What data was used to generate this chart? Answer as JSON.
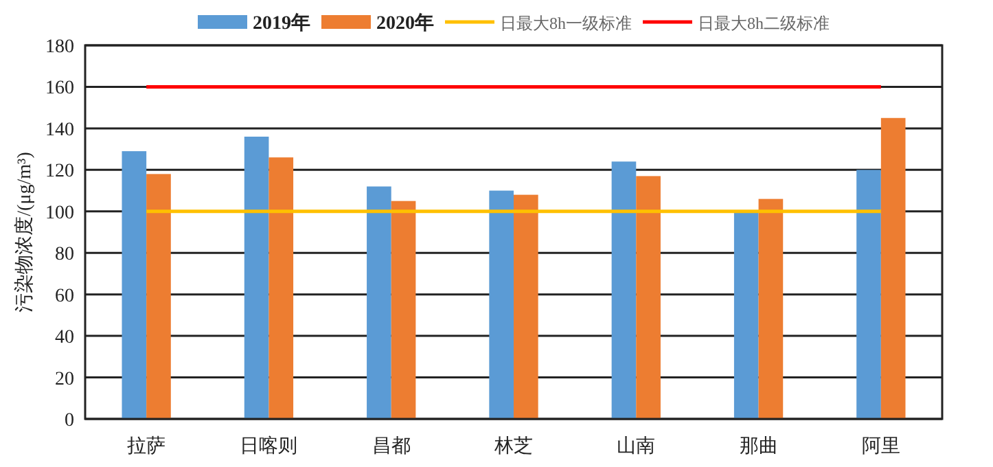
{
  "chart_data": {
    "type": "bar",
    "ylabel": "污染物浓度/(μg/m³)",
    "categories": [
      "拉萨",
      "日喀则",
      "昌都",
      "林芝",
      "山南",
      "那曲",
      "阿里"
    ],
    "series": [
      {
        "name": "2019年",
        "color": "#5b9bd5",
        "values": [
          129,
          136,
          112,
          110,
          124,
          100,
          120
        ]
      },
      {
        "name": "2020年",
        "color": "#ed7d31",
        "values": [
          118,
          126,
          105,
          108,
          117,
          106,
          145
        ]
      }
    ],
    "ref_lines": [
      {
        "axis": "y",
        "value": 100,
        "label": "日最大8h一级标准",
        "color": "#ffc000"
      },
      {
        "axis": "y",
        "value": 160,
        "label": "日最大8h二级标准",
        "color": "#ff0000"
      }
    ],
    "ylim": [
      0,
      180
    ],
    "yticks": [
      0,
      20,
      40,
      60,
      80,
      100,
      120,
      140,
      160,
      180
    ],
    "grid": "y",
    "legend": "top"
  }
}
